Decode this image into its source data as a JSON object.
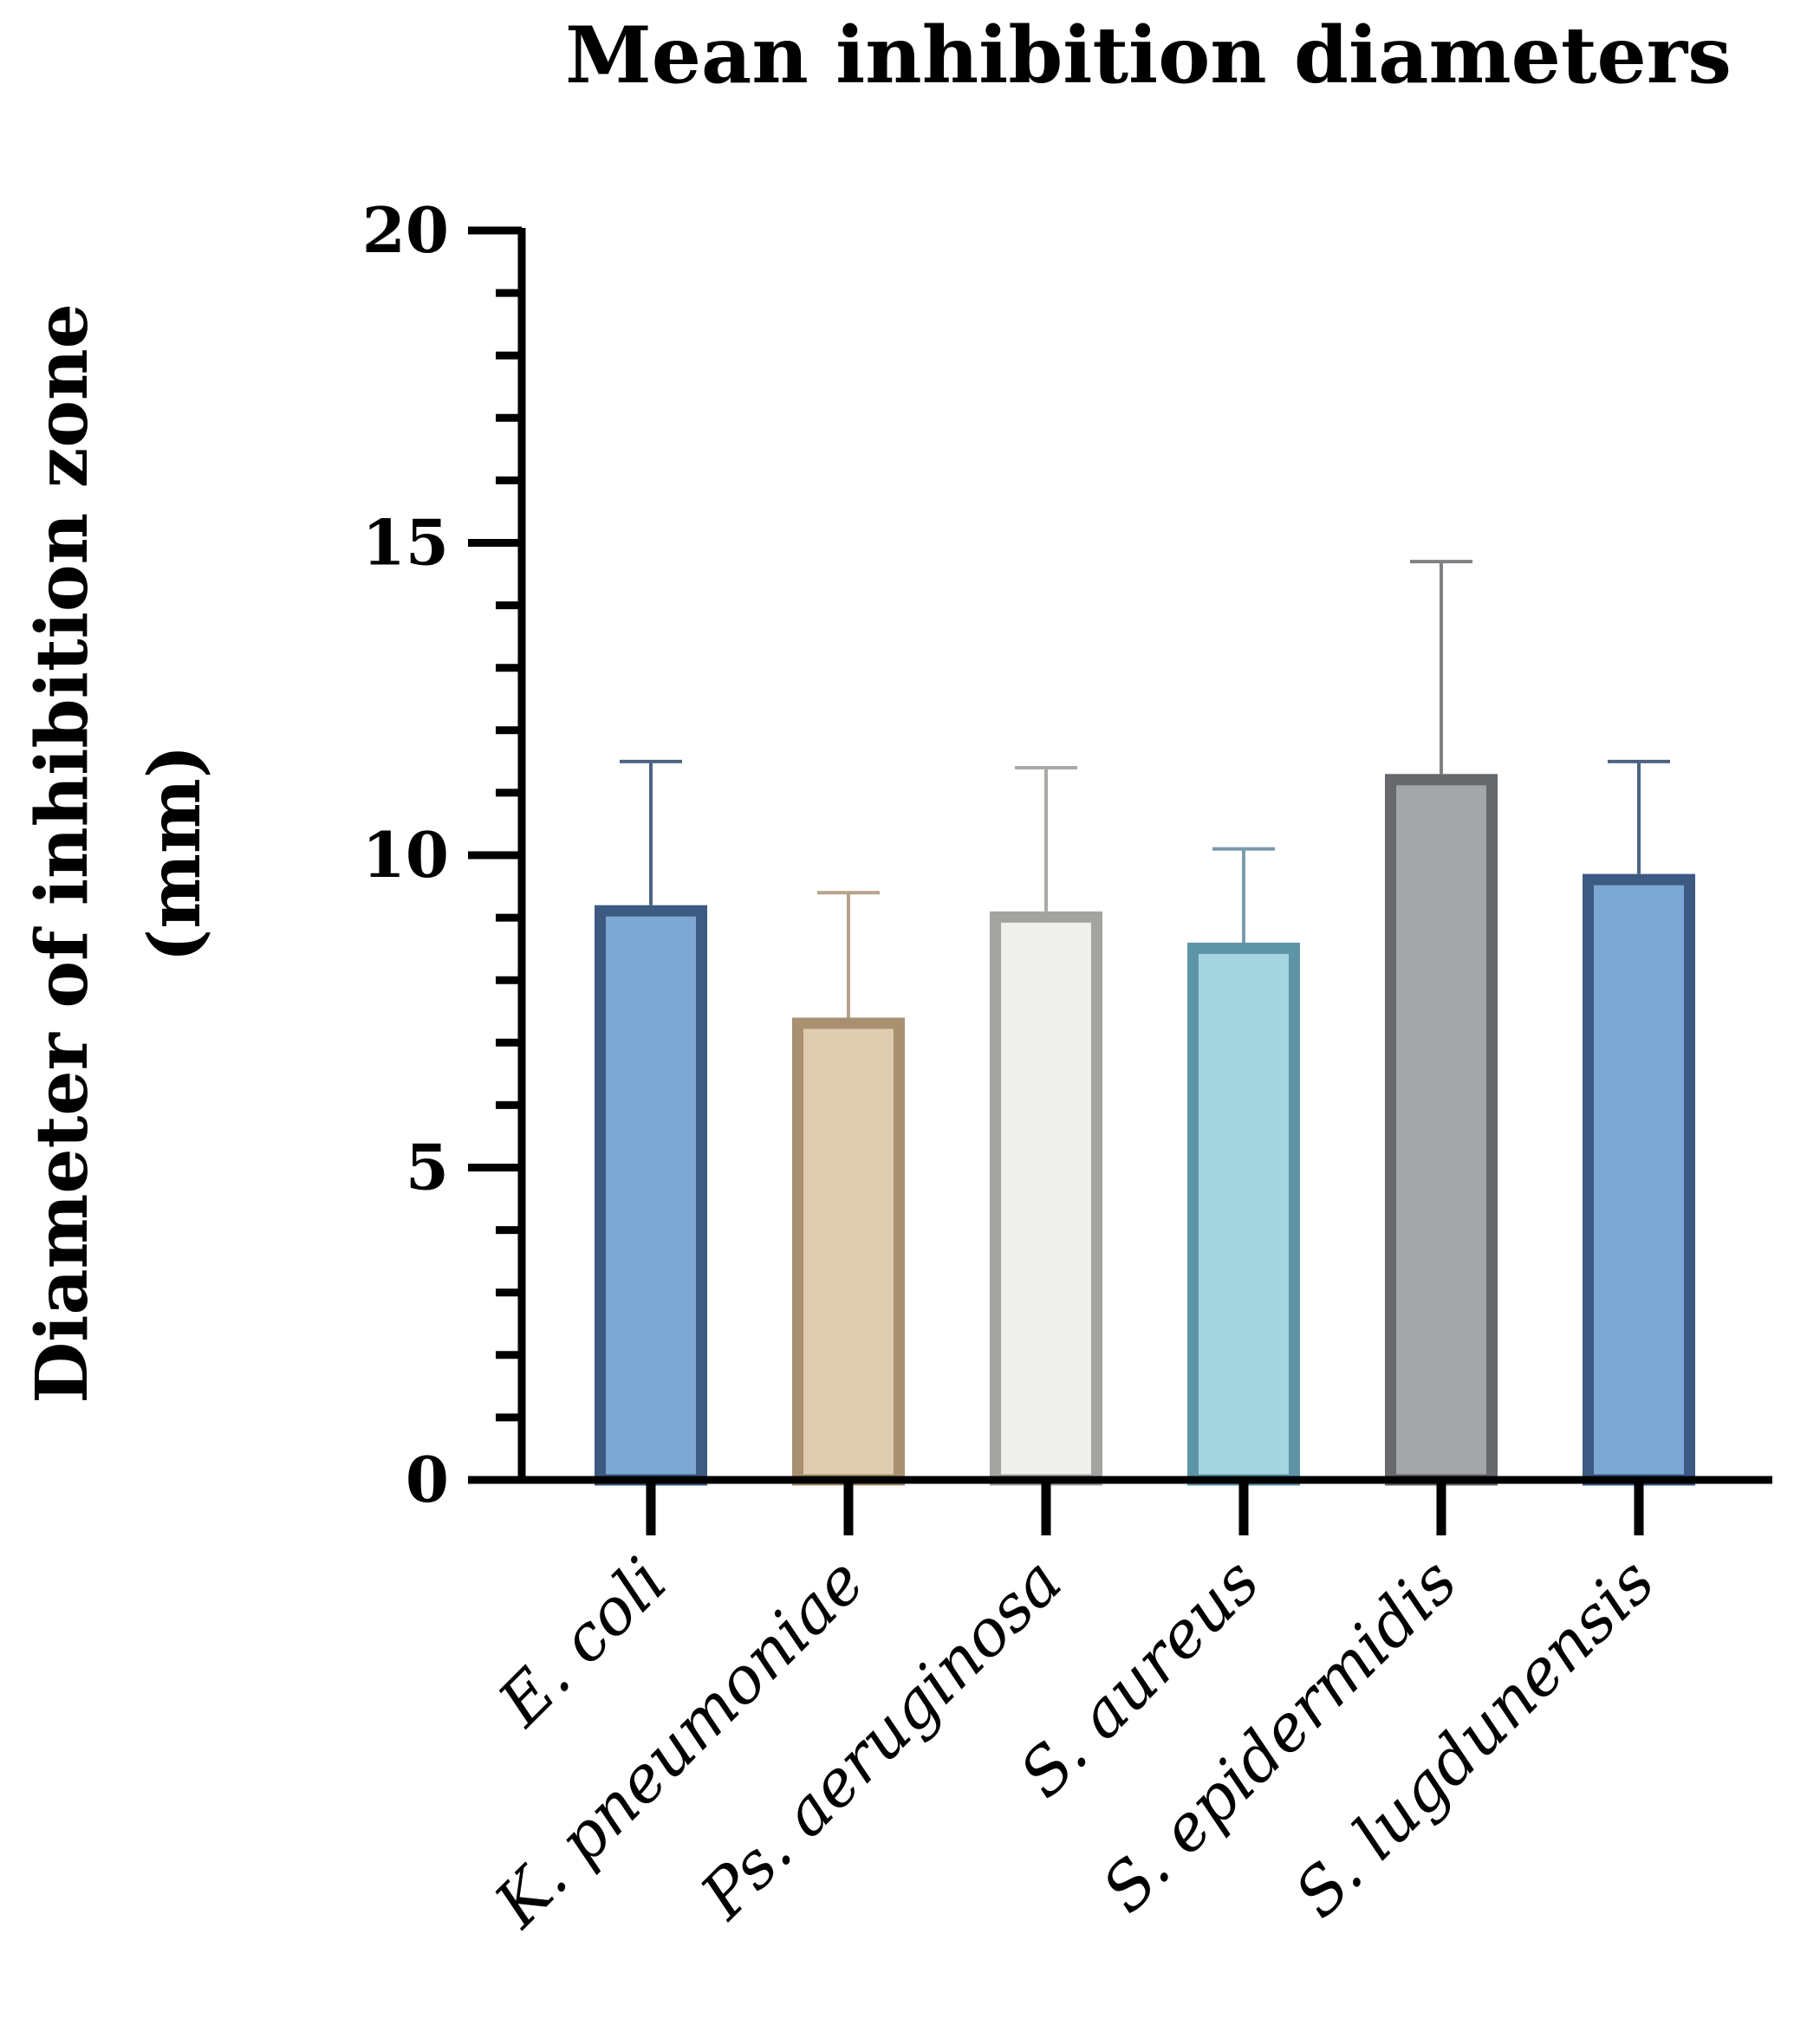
{
  "chart_data": {
    "type": "bar",
    "title": "Mean inhibition diameters",
    "ylabel_lines": [
      "Diameter of inhibition zone",
      "(mm)"
    ],
    "xlabel": "",
    "ylim": [
      0,
      20
    ],
    "yticks_major": [
      0,
      5,
      10,
      15,
      20
    ],
    "ytick_minor_step": 1,
    "categories": [
      "E. coli",
      "K. pneumoniae",
      "Ps. aeruginosa",
      "S. aureus",
      "S. epidermidis",
      "S. lugdunensis"
    ],
    "values": [
      9.2,
      7.4,
      9.1,
      8.6,
      11.3,
      9.7
    ],
    "error_upper": [
      11.5,
      9.4,
      11.4,
      10.1,
      14.7,
      11.5
    ],
    "colors": {
      "fill": [
        "#7ea8d4",
        "#dfcbb0",
        "#efefec",
        "#a6d5e2",
        "#a4a6a9",
        "#7ea8d4"
      ],
      "border": [
        "#3c5a82",
        "#a89070",
        "#a3a4a0",
        "#5e95a6",
        "#66686b",
        "#3c5a82"
      ],
      "error": [
        "#4c6483",
        "#b6a38b",
        "#a9a9a6",
        "#7a9cac",
        "#7f8184",
        "#4c6483"
      ]
    }
  }
}
